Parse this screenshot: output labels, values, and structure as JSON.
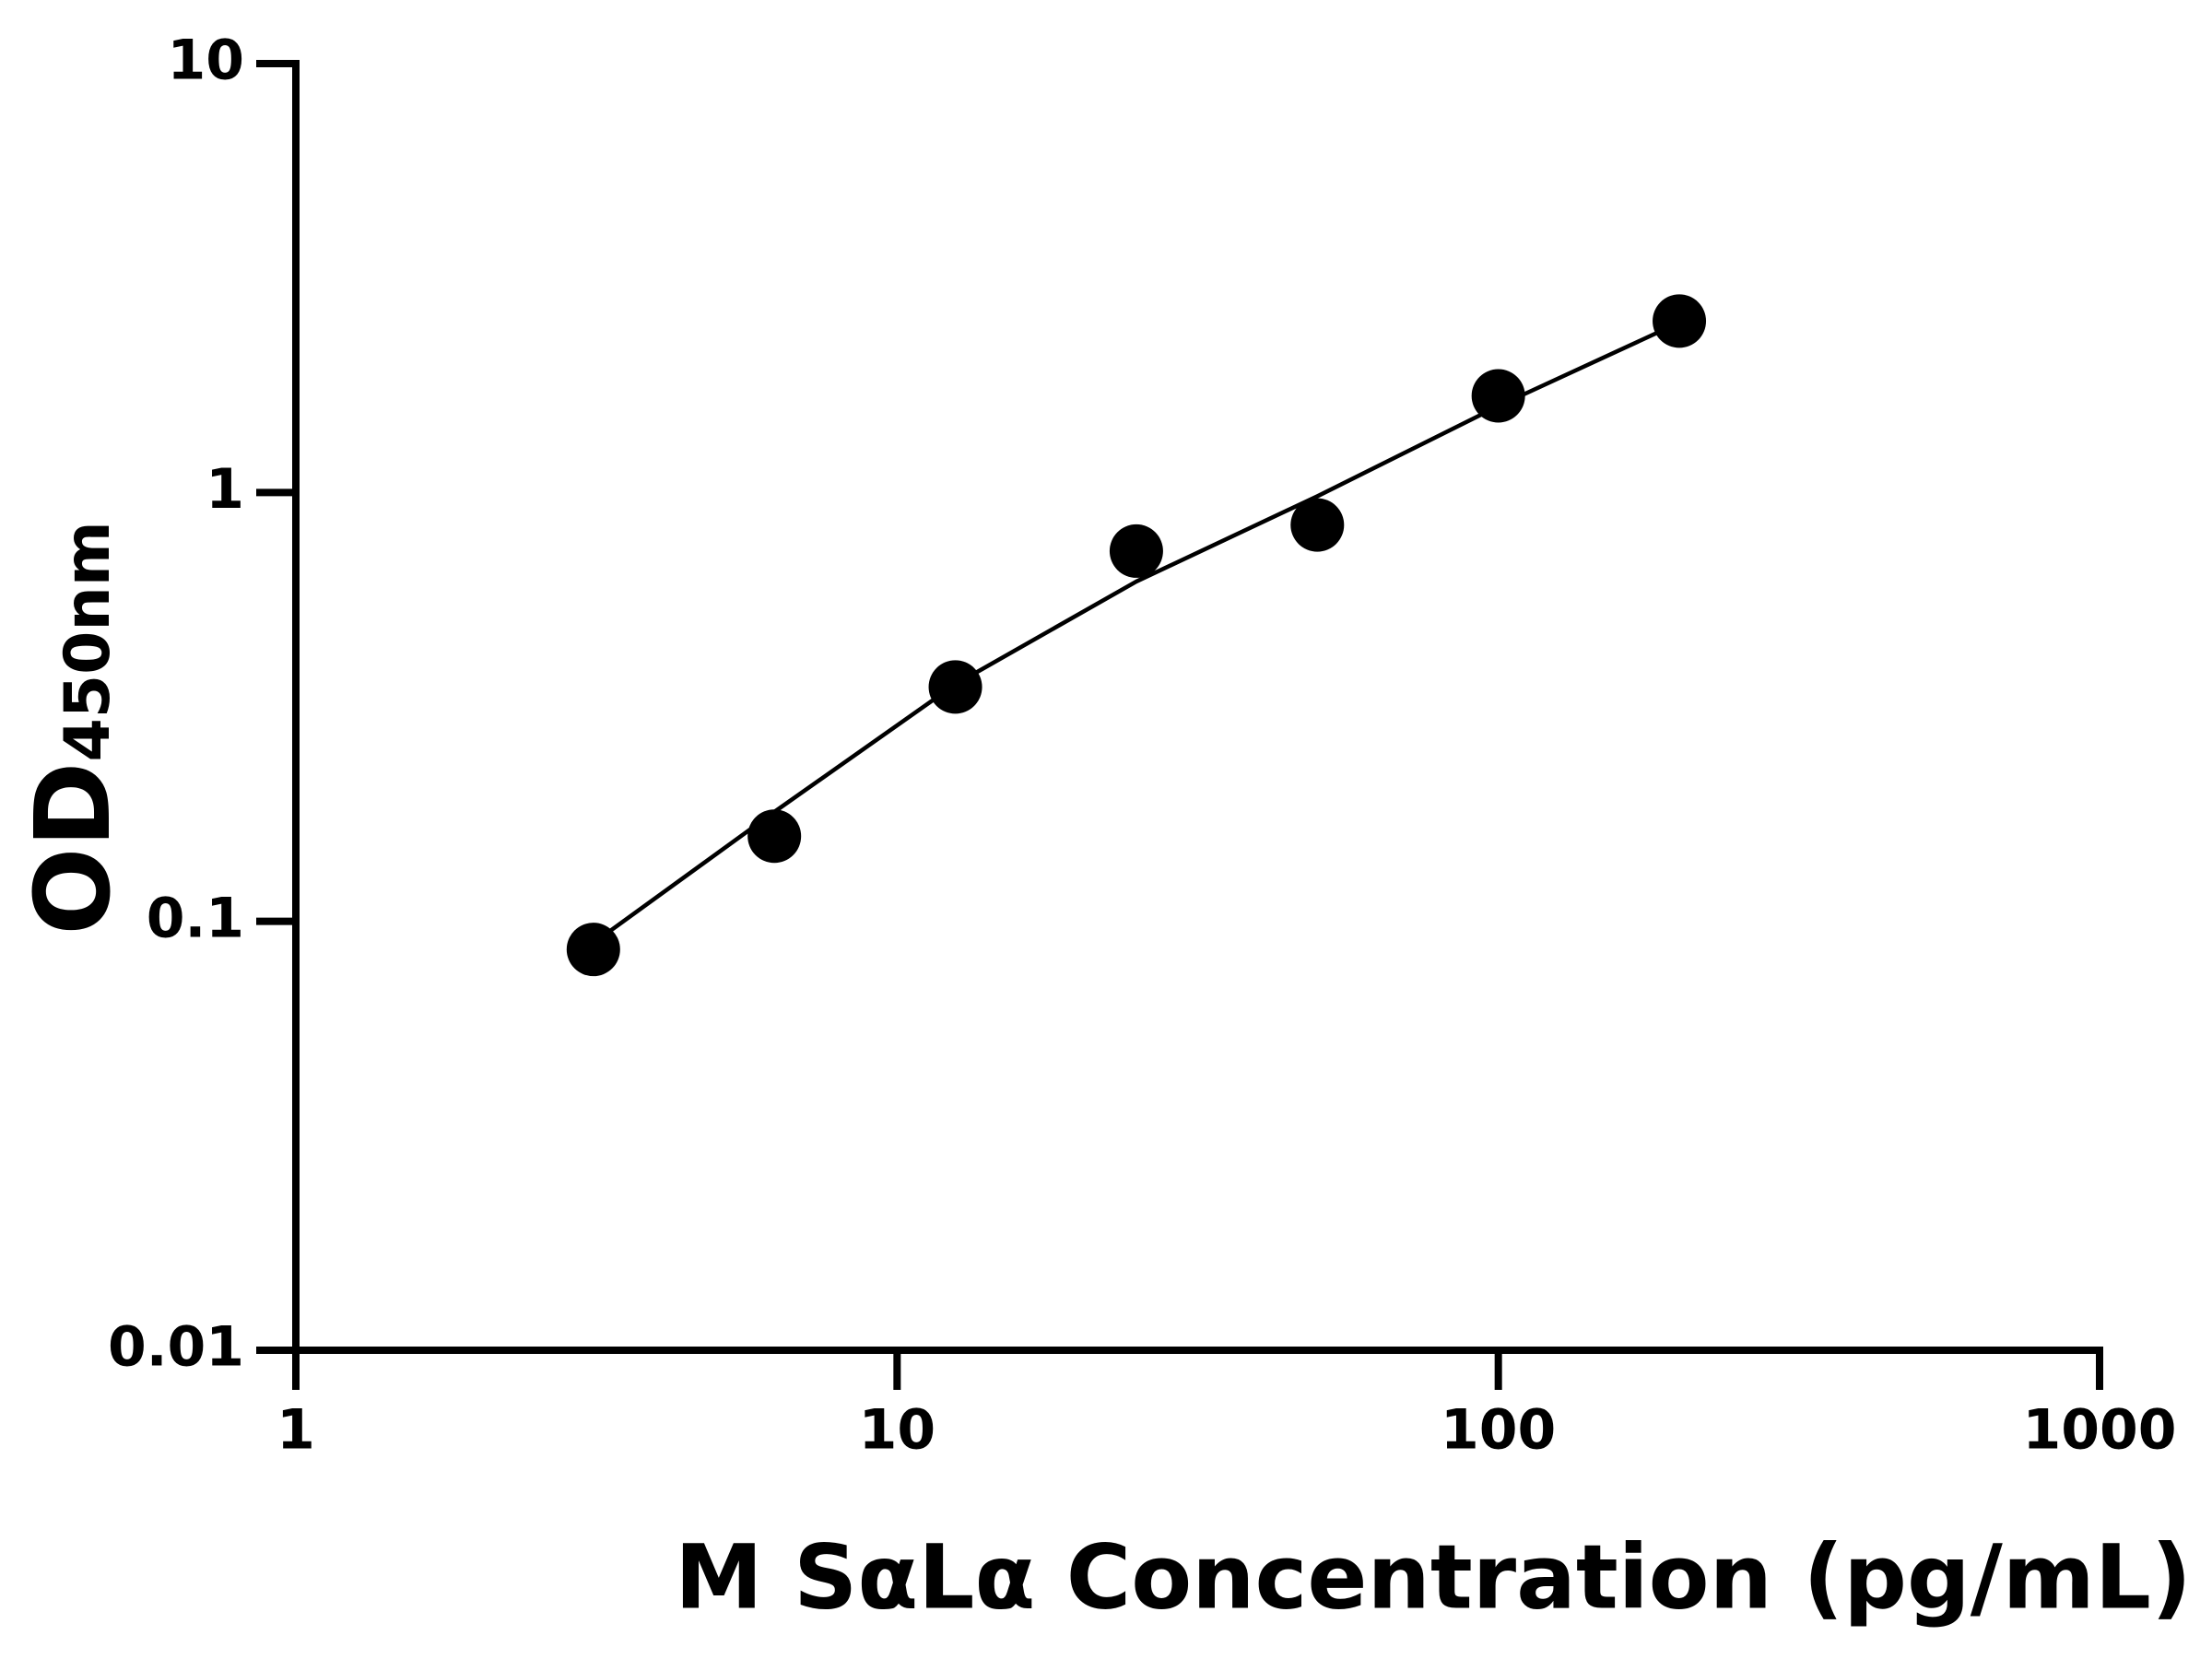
{
  "chart_data": {
    "type": "scatter",
    "x_label": "M SαLα Concentration (pg/mL)",
    "y_label": "OD",
    "y_label_sub": "450nm",
    "x": [
      3.125,
      6.25,
      12.5,
      25,
      50,
      100,
      200
    ],
    "values": [
      0.086,
      0.158,
      0.352,
      0.73,
      0.84,
      1.68,
      2.51
    ],
    "color": "#000000",
    "fit": {
      "x": [
        3.125,
        6.25,
        12.5,
        25,
        50,
        100,
        200
      ],
      "values": [
        0.089,
        0.18,
        0.357,
        0.62,
        0.98,
        1.59,
        2.49
      ]
    },
    "xlim": [
      1,
      1000
    ],
    "xticks": [
      1,
      10,
      100,
      1000
    ],
    "ylim": [
      0.01,
      10
    ],
    "yticks": [
      0.01,
      0.1,
      1,
      10
    ],
    "xscale": "log",
    "yscale": "log"
  }
}
